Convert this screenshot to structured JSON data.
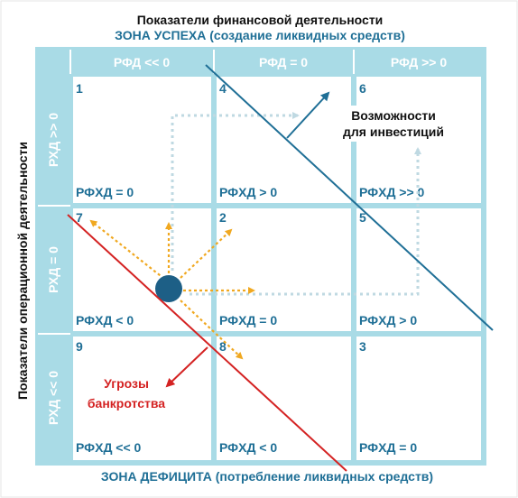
{
  "diagram": {
    "title": "Показатели финансовой деятельности",
    "top_zone": "ЗОНА УСПЕХА (создание ликвидных средств)",
    "bottom_zone": "ЗОНА ДЕФИЦИТА (потребление ликвидных средств)",
    "left_axis_title": "Показатели операционной деятельности",
    "column_headers": [
      "РФД << 0",
      "РФД = 0",
      "РФД >> 0"
    ],
    "row_headers": [
      "РХД >> 0",
      "РХД = 0",
      "РХД << 0"
    ],
    "cells": [
      {
        "number": "1",
        "label": "РФХД = 0"
      },
      {
        "number": "4",
        "label": "РФХД > 0"
      },
      {
        "number": "6",
        "label": "РФХД >> 0"
      },
      {
        "number": "7",
        "label": "РФХД < 0"
      },
      {
        "number": "2",
        "label": "РФХД = 0"
      },
      {
        "number": "5",
        "label": "РФХД > 0"
      },
      {
        "number": "9",
        "label": "РФХД << 0"
      },
      {
        "number": "8",
        "label": "РФХД < 0"
      },
      {
        "number": "3",
        "label": "РФХД = 0"
      }
    ],
    "opportunities_lines": [
      "Возможности",
      "для инвестиций"
    ],
    "threats_lines": [
      "Угрозы",
      "банкротства"
    ],
    "colors": {
      "grid": "#a9dbe6",
      "header_text": "#ffffff",
      "accent_blue": "#1f6f96",
      "threat_red": "#d42222",
      "arrow_orange": "#f0a820",
      "path_gray": "#bfd9e2",
      "dot": "#1d5f86"
    }
  }
}
